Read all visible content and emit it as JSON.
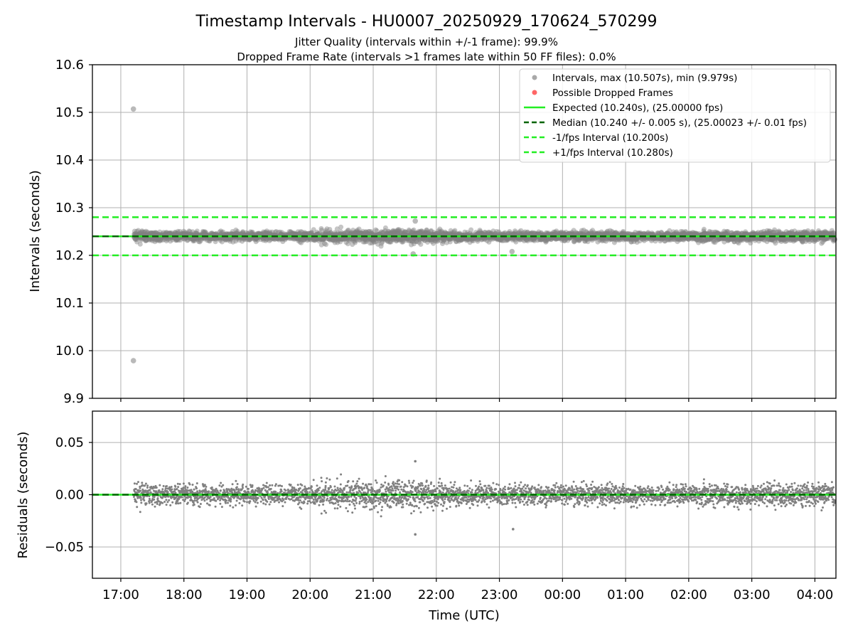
{
  "chart_data": [
    {
      "panel": "intervals",
      "type": "scatter",
      "title": "Timestamp Intervals - HU0007_20250929_170624_570299",
      "subtitle_lines": [
        "Jitter Quality (intervals within +/-1 frame): 99.9%",
        "Dropped Frame Rate (intervals >1 frames late within 50 FF files): 0.0%"
      ],
      "xlabel": "",
      "ylabel": "Intervals (seconds)",
      "ylim": [
        9.9,
        10.6
      ],
      "xlim": [
        "2025-09-29T16:33",
        "2025-09-30T04:20"
      ],
      "y_ticks": [
        "9.9",
        "10.0",
        "10.1",
        "10.2",
        "10.3",
        "10.4",
        "10.5",
        "10.6"
      ],
      "grid": true,
      "legend_placement": "top-right",
      "legend": [
        {
          "label": "Intervals, max (10.507s), min (9.979s)",
          "kind": "dot",
          "color": "#999999"
        },
        {
          "label": "Possible Dropped Frames",
          "kind": "dot",
          "color": "#ff6666"
        },
        {
          "label": "Expected (10.240s), (25.00000 fps)",
          "kind": "solid",
          "color": "#22ee22"
        },
        {
          "label": "Median (10.240 +/- 0.005 s), (25.00023 +/- 0.01 fps)",
          "kind": "dashed",
          "color": "#006400"
        },
        {
          "label": "-1/fps Interval (10.200s)",
          "kind": "dashed",
          "color": "#22ee22"
        },
        {
          "label": "+1/fps Interval (10.280s)",
          "kind": "dashed",
          "color": "#22ee22"
        }
      ],
      "reference_lines": {
        "expected": 10.24,
        "median": 10.24,
        "minus_1_fps": 10.2,
        "plus_1_fps": 10.28
      },
      "series": [
        {
          "name": "Intervals, max (10.507s), min (9.979s)",
          "summary": {
            "median": 10.24,
            "max": 10.507,
            "min": 9.979,
            "jitter_std": 0.005
          },
          "outliers": [
            {
              "x": "2025-09-29T17:12",
              "y": 10.507
            },
            {
              "x": "2025-09-29T17:12",
              "y": 9.979
            },
            {
              "x": "2025-09-29T21:40",
              "y": 10.272
            },
            {
              "x": "2025-09-29T23:12",
              "y": 10.208
            },
            {
              "x": "2025-09-29T21:38",
              "y": 10.203
            }
          ]
        },
        {
          "name": "Possible Dropped Frames",
          "values": []
        }
      ],
      "colors": {
        "points": "#808080",
        "green": "#22ee22",
        "dark_green": "#006400",
        "grid": "#b0b0b0"
      }
    },
    {
      "panel": "residuals",
      "type": "scatter",
      "xlabel": "Time (UTC)",
      "ylabel": "Residuals (seconds)",
      "ylim": [
        -0.08,
        0.08
      ],
      "y_ticks": [
        "−0.05",
        "0.00",
        "0.05"
      ],
      "x_ticks": [
        "17:00",
        "18:00",
        "19:00",
        "20:00",
        "21:00",
        "22:00",
        "23:00",
        "00:00",
        "01:00",
        "02:00",
        "03:00",
        "04:00"
      ],
      "grid": true,
      "reference_lines": {
        "zero": 0.0
      },
      "residual_spread_by_hour": [
        {
          "x": "17:00-20:00",
          "std": 0.008
        },
        {
          "x": "20:00-22:00",
          "std": 0.011
        },
        {
          "x": "22:00-02:00",
          "std": 0.008
        },
        {
          "x": "02:00-04:20",
          "std": 0.009
        }
      ],
      "outliers": [
        {
          "x": "2025-09-29T21:40",
          "y": 0.032
        },
        {
          "x": "2025-09-29T21:40",
          "y": -0.038
        },
        {
          "x": "2025-09-29T23:13",
          "y": -0.033
        }
      ]
    }
  ]
}
